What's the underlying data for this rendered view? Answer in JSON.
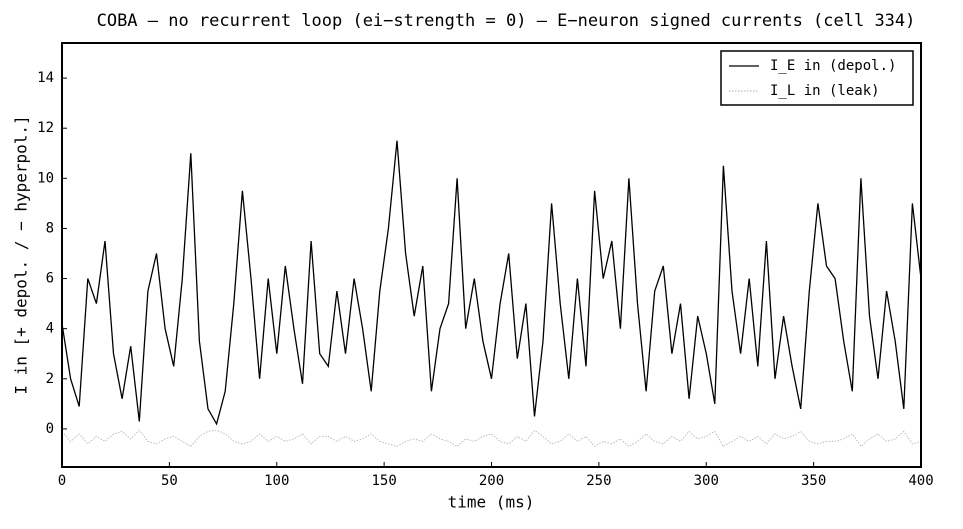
{
  "chart_data": {
    "type": "line",
    "title": "COBA — no recurrent loop (ei−strength = 0) — E−neuron signed currents (cell 334)",
    "xlabel": "time (ms)",
    "ylabel": "I in  [+ depol. / − hyperpol.]",
    "x": [
      0,
      4,
      8,
      12,
      16,
      20,
      24,
      28,
      32,
      36,
      40,
      44,
      48,
      52,
      56,
      60,
      64,
      68,
      72,
      76,
      80,
      84,
      88,
      92,
      96,
      100,
      104,
      108,
      112,
      116,
      120,
      124,
      128,
      132,
      136,
      140,
      144,
      148,
      152,
      156,
      160,
      164,
      168,
      172,
      176,
      180,
      184,
      188,
      192,
      196,
      200,
      204,
      208,
      212,
      216,
      220,
      224,
      228,
      232,
      236,
      240,
      244,
      248,
      252,
      256,
      260,
      264,
      268,
      272,
      276,
      280,
      284,
      288,
      292,
      296,
      300,
      304,
      308,
      312,
      316,
      320,
      324,
      328,
      332,
      336,
      340,
      344,
      348,
      352,
      356,
      360,
      364,
      368,
      372,
      376,
      380,
      384,
      388,
      392,
      396,
      400
    ],
    "series": [
      {
        "name": "I_E in (depol.)",
        "color": "#000000",
        "linestyle": "solid",
        "values": [
          4.2,
          2,
          0.9,
          6,
          5,
          7.5,
          3,
          1.2,
          3.3,
          0.3,
          5.5,
          7,
          4,
          2.5,
          6,
          11,
          3.5,
          0.8,
          0.2,
          1.5,
          5,
          9.5,
          6,
          2,
          6,
          3,
          6.5,
          4,
          1.8,
          7.5,
          3,
          2.5,
          5.5,
          3,
          6,
          4,
          1.5,
          5.5,
          8,
          11.5,
          7,
          4.5,
          6.5,
          1.5,
          4,
          5,
          10,
          4,
          6,
          3.5,
          2,
          5,
          7,
          2.8,
          5,
          0.5,
          3.5,
          9,
          5,
          2,
          6,
          2.5,
          9.5,
          6,
          7.5,
          4,
          10,
          5,
          1.5,
          5.5,
          6.5,
          3,
          5,
          1.2,
          4.5,
          3,
          1,
          10.5,
          5.5,
          3,
          6,
          2.5,
          7.5,
          2,
          4.5,
          2.5,
          0.8,
          5.5,
          9,
          6.5,
          6,
          3.5,
          1.5,
          10,
          4.5,
          2,
          5.5,
          3.5,
          0.8,
          9,
          6
        ]
      },
      {
        "name": "I_L in (leak)",
        "color": "#bbbbbb",
        "linestyle": "dotted",
        "values": [
          -0.1,
          -0.5,
          -0.2,
          -0.6,
          -0.3,
          -0.5,
          -0.2,
          -0.1,
          -0.4,
          -0.05,
          -0.5,
          -0.6,
          -0.4,
          -0.3,
          -0.5,
          -0.7,
          -0.3,
          -0.1,
          -0.05,
          -0.2,
          -0.5,
          -0.6,
          -0.5,
          -0.2,
          -0.5,
          -0.3,
          -0.5,
          -0.4,
          -0.2,
          -0.6,
          -0.3,
          -0.3,
          -0.5,
          -0.3,
          -0.5,
          -0.4,
          -0.2,
          -0.5,
          -0.6,
          -0.7,
          -0.5,
          -0.4,
          -0.5,
          -0.2,
          -0.4,
          -0.5,
          -0.7,
          -0.4,
          -0.5,
          -0.3,
          -0.2,
          -0.5,
          -0.6,
          -0.3,
          -0.5,
          -0.05,
          -0.3,
          -0.6,
          -0.5,
          -0.2,
          -0.5,
          -0.3,
          -0.7,
          -0.5,
          -0.6,
          -0.4,
          -0.7,
          -0.5,
          -0.2,
          -0.5,
          -0.6,
          -0.3,
          -0.5,
          -0.1,
          -0.4,
          -0.3,
          -0.1,
          -0.7,
          -0.5,
          -0.3,
          -0.5,
          -0.3,
          -0.6,
          -0.2,
          -0.4,
          -0.3,
          -0.1,
          -0.5,
          -0.6,
          -0.5,
          -0.5,
          -0.4,
          -0.2,
          -0.7,
          -0.4,
          -0.2,
          -0.5,
          -0.4,
          -0.1,
          -0.6,
          -0.5
        ]
      }
    ],
    "xlim": [
      0,
      400
    ],
    "xticks": [
      0,
      50,
      100,
      150,
      200,
      250,
      300,
      350,
      400
    ],
    "ylim": [
      -1.52,
      15.4
    ],
    "yticks": [
      0,
      2,
      4,
      6,
      8,
      10,
      12,
      14
    ],
    "legend": "upper right"
  }
}
